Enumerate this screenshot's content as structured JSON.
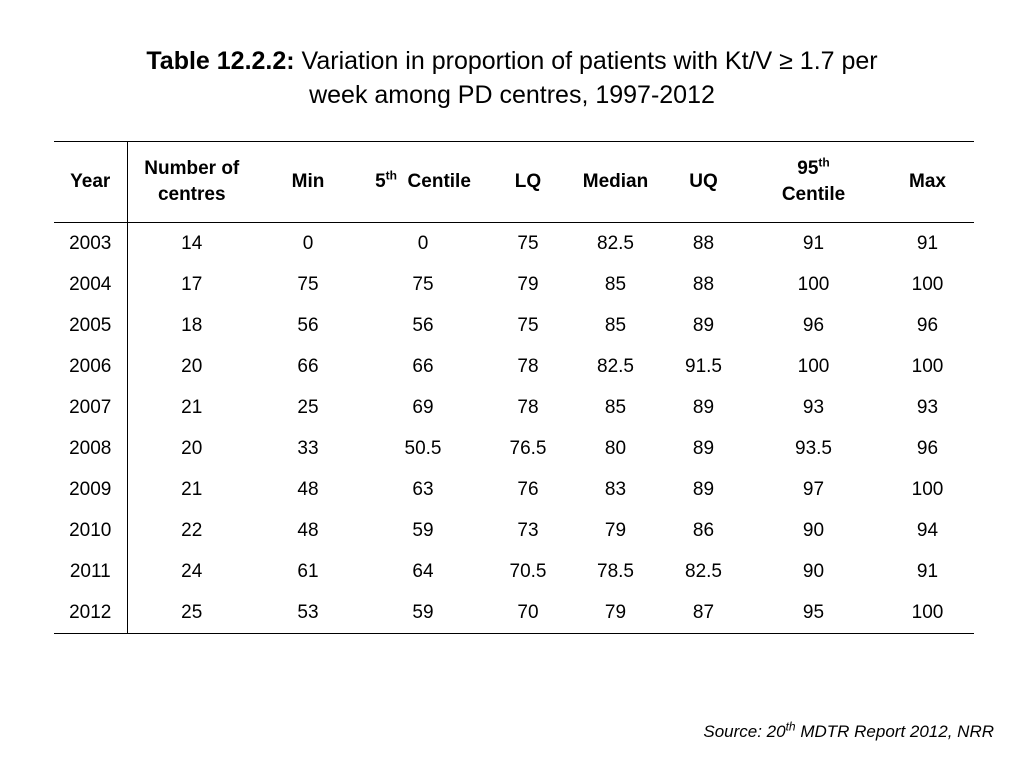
{
  "title": {
    "label": "Table 12.2.2:",
    "line1": "Variation in proportion of patients with Kt/V ≥ 1.7 per",
    "line2": "week among PD centres, 1997-2012"
  },
  "table": {
    "headers": {
      "year": "Year",
      "number_line1": "Number of",
      "number_line2": "centres",
      "min": "Min",
      "p5_num": "5",
      "p5_sup": "th",
      "p5_text": "Centile",
      "lq": "LQ",
      "median": "Median",
      "uq": "UQ",
      "p95_num": "95",
      "p95_sup": "th",
      "p95_text": "Centile",
      "max": "Max"
    },
    "rows": [
      [
        "2003",
        "14",
        "0",
        "0",
        "75",
        "82.5",
        "88",
        "91",
        "91"
      ],
      [
        "2004",
        "17",
        "75",
        "75",
        "79",
        "85",
        "88",
        "100",
        "100"
      ],
      [
        "2005",
        "18",
        "56",
        "56",
        "75",
        "85",
        "89",
        "96",
        "96"
      ],
      [
        "2006",
        "20",
        "66",
        "66",
        "78",
        "82.5",
        "91.5",
        "100",
        "100"
      ],
      [
        "2007",
        "21",
        "25",
        "69",
        "78",
        "85",
        "89",
        "93",
        "93"
      ],
      [
        "2008",
        "20",
        "33",
        "50.5",
        "76.5",
        "80",
        "89",
        "93.5",
        "96"
      ],
      [
        "2009",
        "21",
        "48",
        "63",
        "76",
        "83",
        "89",
        "97",
        "100"
      ],
      [
        "2010",
        "22",
        "48",
        "59",
        "73",
        "79",
        "86",
        "90",
        "94"
      ],
      [
        "2011",
        "24",
        "61",
        "64",
        "70.5",
        "78.5",
        "82.5",
        "90",
        "91"
      ],
      [
        "2012",
        "25",
        "53",
        "59",
        "70",
        "79",
        "87",
        "95",
        "100"
      ]
    ]
  },
  "source": {
    "prefix": "Source: 20",
    "sup": "th",
    "suffix": " MDTR Report 2012, NRR"
  }
}
